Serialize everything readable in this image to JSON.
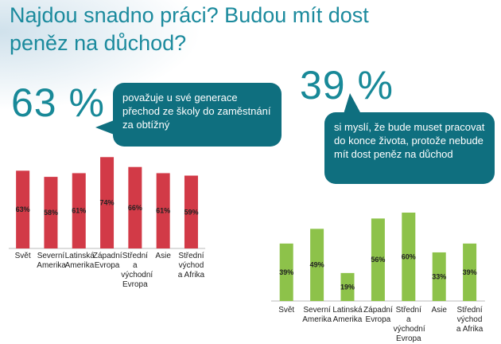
{
  "title": "Najdou snadno práci? Budou mít dost peněz na důchod?",
  "left_callout": {
    "percent": "63 %",
    "text": "považuje u své generace přechod ze školy do zaměstnání za obtížný"
  },
  "right_callout": {
    "percent": "39 %",
    "text": "si myslí, že bude muset pracovat do konce života, protože nebude mít dost peněz na důchod"
  },
  "colors": {
    "left_bars": "#d23a47",
    "right_bars": "#8dc24a",
    "accent": "#188998",
    "bubble": "#0f6f7f"
  },
  "chart_data": [
    {
      "type": "bar",
      "categories": [
        "Svět",
        "Severní Amerika",
        "Latinská Amerika",
        "Západní Evropa",
        "Střední a východní Evropa",
        "Asie",
        "Střední východ a Afrika"
      ],
      "values": [
        63,
        58,
        61,
        74,
        66,
        61,
        59
      ],
      "value_labels": [
        "63%",
        "58%",
        "61%",
        "74%",
        "66%",
        "61%",
        "59%"
      ],
      "ylim": [
        0,
        80
      ]
    },
    {
      "type": "bar",
      "categories": [
        "Svět",
        "Severní Amerika",
        "Latinská Amerika",
        "Západní Evropa",
        "Střední a východní Evropa",
        "Asie",
        "Střední východ a Afrika"
      ],
      "values": [
        39,
        49,
        19,
        56,
        60,
        33,
        39
      ],
      "value_labels": [
        "39%",
        "49%",
        "19%",
        "56%",
        "60%",
        "33%",
        "39%"
      ],
      "ylim": [
        0,
        65
      ]
    }
  ]
}
